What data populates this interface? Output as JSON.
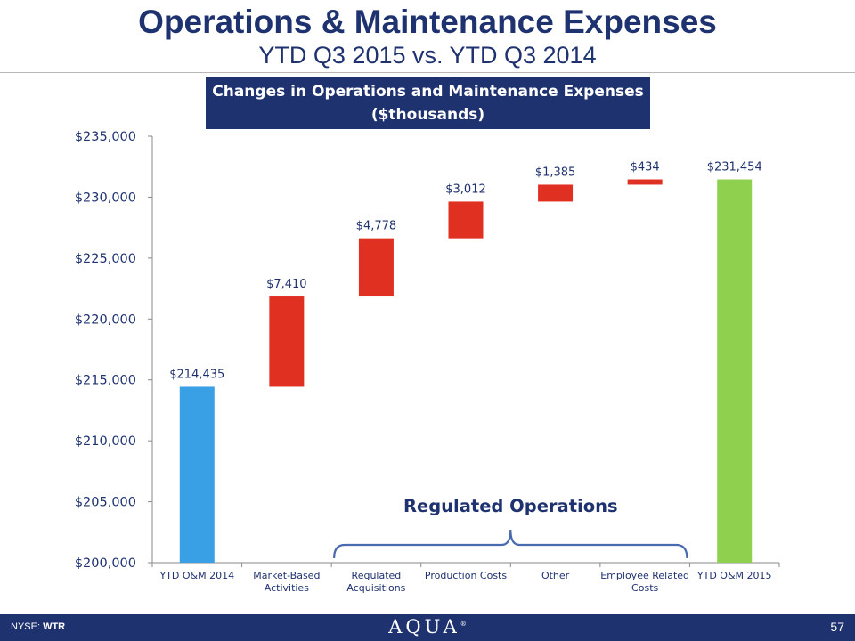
{
  "slide": {
    "title": "Operations & Maintenance Expenses",
    "subtitle": "YTD Q3 2015 vs. YTD Q3 2014",
    "page_number": "57"
  },
  "footer": {
    "exchange_label": "NYSE: ",
    "ticker": "WTR",
    "logo_text": "AQUA",
    "logo_mark": "®"
  },
  "chart_data": {
    "type": "bar",
    "subtype": "waterfall",
    "title_lines": [
      "Changes in Operations and Maintenance Expenses",
      "($thousands)"
    ],
    "categories": [
      "YTD O&M 2014",
      "Market-Based Activities",
      "Regulated Acquisitions",
      "Production Costs",
      "Other",
      "Employee Related Costs",
      "YTD O&M 2015"
    ],
    "category_label_lines": [
      [
        "YTD O&M 2014"
      ],
      [
        "Market-Based",
        "Activities"
      ],
      [
        "Regulated",
        "Acquisitions"
      ],
      [
        "Production Costs"
      ],
      [
        "Other"
      ],
      [
        "Employee Related",
        "Costs"
      ],
      [
        "YTD O&M 2015"
      ]
    ],
    "bars": [
      {
        "kind": "total",
        "start": 200000,
        "end": 214435,
        "label": "$214,435",
        "color": "#3aa0e6"
      },
      {
        "kind": "increase",
        "start": 214435,
        "end": 221845,
        "label": "$7,410",
        "color": "#e03022"
      },
      {
        "kind": "increase",
        "start": 221845,
        "end": 226623,
        "label": "$4,778",
        "color": "#e03022"
      },
      {
        "kind": "increase",
        "start": 226623,
        "end": 229635,
        "label": "$3,012",
        "color": "#e03022"
      },
      {
        "kind": "increase",
        "start": 229635,
        "end": 231020,
        "label": "$1,385",
        "color": "#e03022"
      },
      {
        "kind": "increase",
        "start": 231020,
        "end": 231454,
        "label": "$434",
        "color": "#e03022"
      },
      {
        "kind": "total",
        "start": 200000,
        "end": 231454,
        "label": "$231,454",
        "color": "#8fd14f"
      }
    ],
    "ylim": [
      200000,
      235000
    ],
    "yticks": [
      200000,
      205000,
      210000,
      215000,
      220000,
      225000,
      230000,
      235000
    ],
    "ytick_labels": [
      "$200,000",
      "$205,000",
      "$210,000",
      "$215,000",
      "$220,000",
      "$225,000",
      "$230,000",
      "$235,000"
    ],
    "annotation": {
      "text": "Regulated Operations",
      "spans_categories": [
        "Regulated Acquisitions",
        "Production Costs",
        "Other",
        "Employee Related Costs"
      ]
    },
    "grid": false,
    "legend": "none"
  },
  "colors": {
    "navy": "#1f3270",
    "axis": "#8a8a8a"
  }
}
